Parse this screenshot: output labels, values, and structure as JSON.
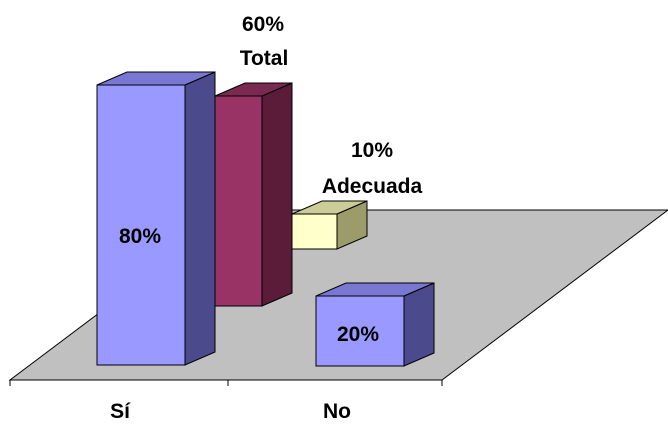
{
  "chart_data": {
    "type": "bar",
    "categories": [
      "Sí",
      "No"
    ],
    "series": [
      {
        "name": "",
        "values": [
          80,
          20
        ]
      },
      {
        "name": "Total",
        "values": [
          60,
          null
        ]
      },
      {
        "name": "Adecuada",
        "values": [
          10,
          null
        ]
      }
    ],
    "data_labels": {
      "si_main": "80%",
      "no_main": "20%",
      "total_line1": "60%",
      "total_line2": "Total",
      "adecuada_line1": "10%",
      "adecuada_line2": "Adecuada"
    },
    "title": "",
    "xlabel": "",
    "ylabel": "",
    "ylim": [
      0,
      100
    ],
    "grid": false,
    "legend": "none",
    "colors": {
      "series1_front": "#9999ff",
      "series1_side": "#4a4a8c",
      "series1_top": "#7878d2",
      "series2_front": "#993366",
      "series2_side": "#5a1c38",
      "series2_top": "#7a2a50",
      "series3_front": "#ffffcc",
      "series3_side": "#9c9c6a",
      "series3_top": "#cccc99",
      "floor": "#c0c0c0"
    }
  }
}
